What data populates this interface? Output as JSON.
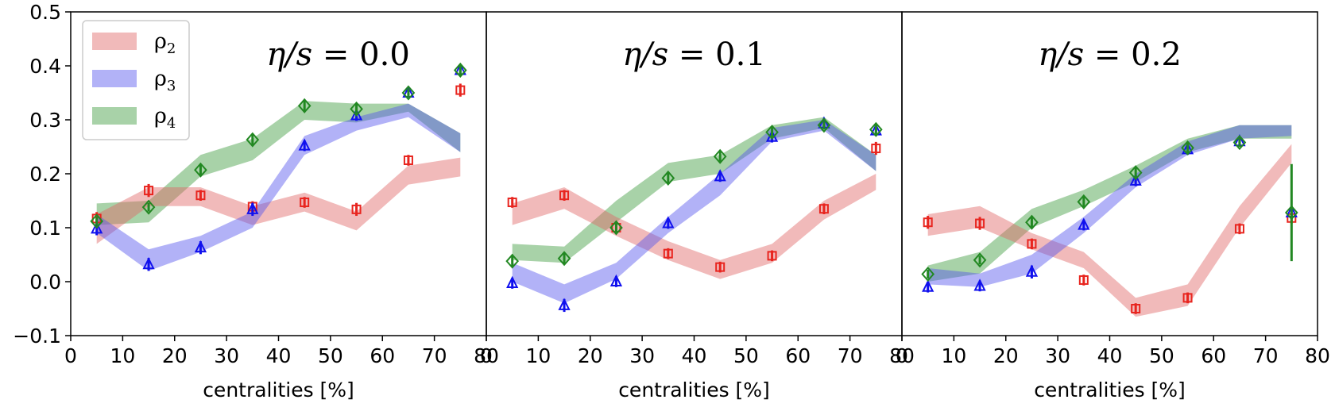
{
  "chart_data": {
    "type": "line",
    "x_values": [
      5,
      15,
      25,
      35,
      45,
      55,
      65,
      75
    ],
    "xlabel": "centralities [%]",
    "xlim": [
      0,
      80
    ],
    "ylim": [
      -0.1,
      0.5
    ],
    "x_ticks": [
      "0",
      "10",
      "20",
      "30",
      "40",
      "50",
      "60",
      "70",
      "80"
    ],
    "y_ticks": [
      "−0.1",
      "0.0",
      "0.1",
      "0.2",
      "0.3",
      "0.4",
      "0.5"
    ],
    "legend": {
      "placement": "top-left",
      "entries": [
        {
          "symbol": "ρ",
          "subscript": "2",
          "name": "rho2"
        },
        {
          "symbol": "ρ",
          "subscript": "3",
          "name": "rho3"
        },
        {
          "symbol": "ρ",
          "subscript": "4",
          "name": "rho4"
        }
      ]
    },
    "colors": {
      "rho2_band": "#e06666",
      "rho2_marker": "#e8251f",
      "rho3_band": "#5555ee",
      "rho3_marker": "#1010ee",
      "rho4_band": "#3d9b3d",
      "rho4_marker": "#228822"
    },
    "panels": [
      {
        "title_symbol": "η/s",
        "title_value": "= 0.0",
        "bands": {
          "rho2": {
            "x": [
              5,
              15,
              25,
              35,
              45,
              55,
              65,
              75
            ],
            "lower": [
              0.07,
              0.14,
              0.14,
              0.105,
              0.13,
              0.095,
              0.18,
              0.195
            ],
            "upper": [
              0.125,
              0.175,
              0.175,
              0.14,
              0.165,
              0.13,
              0.215,
              0.23
            ]
          },
          "rho3": {
            "x": [
              5,
              15,
              25,
              35,
              45,
              55,
              65,
              75
            ],
            "lower": [
              0.09,
              0.02,
              0.055,
              0.1,
              0.235,
              0.28,
              0.305,
              0.24
            ],
            "upper": [
              0.125,
              0.06,
              0.085,
              0.13,
              0.27,
              0.305,
              0.33,
              0.275
            ]
          },
          "rho4": {
            "x": [
              5,
              15,
              25,
              35,
              45,
              55,
              65,
              75
            ],
            "lower": [
              0.105,
              0.11,
              0.195,
              0.225,
              0.3,
              0.295,
              0.315,
              0.24
            ],
            "upper": [
              0.145,
              0.15,
              0.235,
              0.265,
              0.335,
              0.33,
              0.33,
              0.275
            ]
          }
        },
        "points": {
          "rho2": {
            "x": [
              5,
              15,
              25,
              35,
              45,
              55,
              65,
              75
            ],
            "y": [
              0.117,
              0.169,
              0.16,
              0.139,
              0.147,
              0.134,
              0.225,
              0.355
            ],
            "err": [
              0.012,
              0.012,
              0.01,
              0.01,
              0.01,
              0.012,
              0.01,
              0.012
            ]
          },
          "rho3": {
            "x": [
              5,
              15,
              25,
              35,
              45,
              55,
              65,
              75
            ],
            "y": [
              0.098,
              0.032,
              0.063,
              0.134,
              0.252,
              0.308,
              0.35,
              0.392
            ],
            "err": [
              0.012,
              0.012,
              0.012,
              0.012,
              0.01,
              0.01,
              0.008,
              0.008
            ]
          },
          "rho4": {
            "x": [
              5,
              15,
              25,
              35,
              45,
              55,
              65,
              75
            ],
            "y": [
              0.112,
              0.138,
              0.207,
              0.263,
              0.326,
              0.32,
              0.35,
              0.392
            ],
            "err": [
              0.008,
              0.008,
              0.01,
              0.01,
              0.01,
              0.01,
              0.008,
              0.01
            ]
          }
        }
      },
      {
        "title_symbol": "η/s",
        "title_value": "= 0.1",
        "bands": {
          "rho2": {
            "x": [
              5,
              15,
              25,
              35,
              45,
              55,
              65,
              75
            ],
            "lower": [
              0.105,
              0.135,
              0.085,
              0.04,
              0.005,
              0.035,
              0.115,
              0.17
            ],
            "upper": [
              0.145,
              0.175,
              0.12,
              0.075,
              0.04,
              0.07,
              0.15,
              0.2
            ]
          },
          "rho3": {
            "x": [
              5,
              15,
              25,
              35,
              45,
              55,
              65,
              75
            ],
            "lower": [
              0.0,
              -0.04,
              0.005,
              0.09,
              0.16,
              0.26,
              0.28,
              0.205
            ],
            "upper": [
              0.035,
              -0.005,
              0.035,
              0.12,
              0.2,
              0.285,
              0.3,
              0.235
            ]
          },
          "rho4": {
            "x": [
              5,
              15,
              25,
              35,
              45,
              55,
              65,
              75
            ],
            "lower": [
              0.04,
              0.035,
              0.11,
              0.185,
              0.2,
              0.265,
              0.285,
              0.205
            ],
            "upper": [
              0.07,
              0.065,
              0.15,
              0.22,
              0.235,
              0.29,
              0.305,
              0.235
            ]
          }
        },
        "points": {
          "rho2": {
            "x": [
              5,
              15,
              25,
              35,
              45,
              55,
              65,
              75
            ],
            "y": [
              0.147,
              0.16,
              0.1,
              0.052,
              0.027,
              0.048,
              0.135,
              0.247
            ],
            "err": [
              0.01,
              0.01,
              0.01,
              0.01,
              0.01,
              0.01,
              0.01,
              0.012
            ]
          },
          "rho3": {
            "x": [
              5,
              15,
              25,
              35,
              45,
              55,
              65,
              75
            ],
            "y": [
              -0.003,
              -0.044,
              0.0,
              0.108,
              0.195,
              0.268,
              0.293,
              0.28
            ],
            "err": [
              0.01,
              0.012,
              0.01,
              0.01,
              0.01,
              0.01,
              0.008,
              0.01
            ]
          },
          "rho4": {
            "x": [
              5,
              15,
              25,
              35,
              45,
              55,
              65,
              75
            ],
            "y": [
              0.038,
              0.043,
              0.1,
              0.192,
              0.232,
              0.277,
              0.29,
              0.282
            ],
            "err": [
              0.01,
              0.01,
              0.01,
              0.01,
              0.01,
              0.01,
              0.008,
              0.01
            ]
          }
        }
      },
      {
        "title_symbol": "η/s",
        "title_value": "= 0.2",
        "bands": {
          "rho2": {
            "x": [
              5,
              15,
              25,
              35,
              45,
              55,
              65,
              75
            ],
            "lower": [
              0.085,
              0.1,
              0.06,
              0.025,
              -0.065,
              -0.045,
              0.1,
              0.22
            ],
            "upper": [
              0.125,
              0.14,
              0.09,
              0.055,
              -0.03,
              -0.005,
              0.14,
              0.255
            ]
          },
          "rho3": {
            "x": [
              5,
              15,
              25,
              35,
              45,
              55,
              65,
              75
            ],
            "lower": [
              -0.005,
              -0.01,
              0.015,
              0.09,
              0.175,
              0.235,
              0.265,
              0.27
            ],
            "upper": [
              0.025,
              0.015,
              0.05,
              0.12,
              0.2,
              0.26,
              0.29,
              0.29
            ]
          },
          "rho4": {
            "x": [
              5,
              15,
              25,
              35,
              45,
              55,
              65,
              75
            ],
            "lower": [
              0.0,
              0.015,
              0.1,
              0.14,
              0.185,
              0.24,
              0.265,
              0.265
            ],
            "upper": [
              0.03,
              0.055,
              0.135,
              0.17,
              0.215,
              0.265,
              0.29,
              0.29
            ]
          }
        },
        "points": {
          "rho2": {
            "x": [
              5,
              15,
              25,
              35,
              45,
              55,
              65,
              75
            ],
            "y": [
              0.11,
              0.108,
              0.07,
              0.003,
              -0.05,
              -0.03,
              0.098,
              0.118
            ],
            "err": [
              0.012,
              0.012,
              0.01,
              0.01,
              0.01,
              0.01,
              0.01,
              0.01
            ]
          },
          "rho3": {
            "x": [
              5,
              15,
              25,
              35,
              45,
              55,
              65,
              75
            ],
            "y": [
              -0.01,
              -0.008,
              0.018,
              0.105,
              0.187,
              0.245,
              0.26,
              0.128
            ],
            "err": [
              0.01,
              0.01,
              0.012,
              0.01,
              0.01,
              0.01,
              0.008,
              0.01
            ]
          },
          "rho4": {
            "x": [
              5,
              15,
              25,
              35,
              45,
              55,
              65,
              75
            ],
            "y": [
              0.014,
              0.04,
              0.11,
              0.148,
              0.202,
              0.248,
              0.258,
              0.128
            ],
            "err": [
              0.008,
              0.008,
              0.01,
              0.01,
              0.01,
              0.01,
              0.008,
              0.09
            ]
          }
        }
      }
    ]
  }
}
